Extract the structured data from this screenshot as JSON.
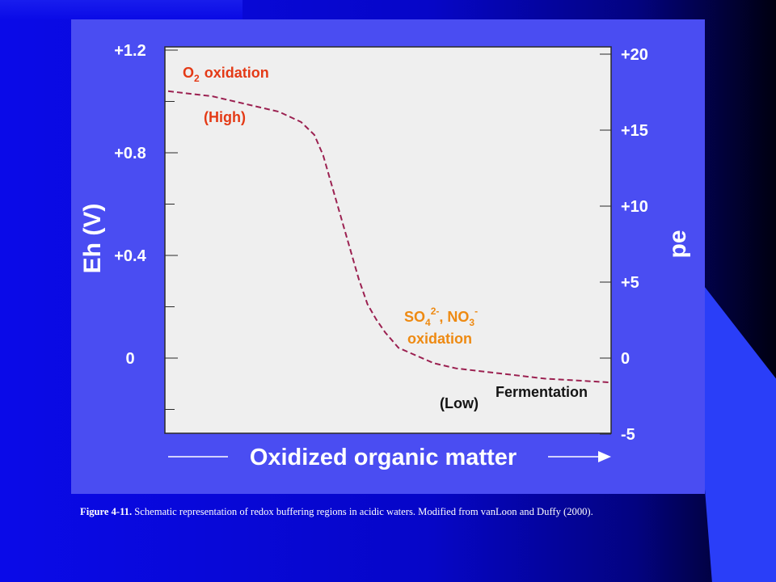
{
  "colors": {
    "background": "#0a0ae8",
    "panel": "#4a4df2",
    "plot_area": "#efefef",
    "curve": "#9b2050",
    "label_red": "#e43a16",
    "label_orange": "#ee8a12",
    "text_white": "#ffffff"
  },
  "chart_data": {
    "type": "line",
    "title": "",
    "xlabel": "Oxidized organic matter",
    "ylabel": "Eh (V)",
    "y2label": "pe",
    "ylim": [
      -0.3,
      1.3
    ],
    "y_ticks": [
      "+1.2",
      "+0.8",
      "+0.4",
      "0"
    ],
    "y2_ticks": [
      "+20",
      "+15",
      "+10",
      "+5",
      "0",
      "-5"
    ],
    "y2_tick_values": [
      20,
      15,
      10,
      5,
      0,
      -5
    ],
    "xlim": [
      0,
      100
    ],
    "series": [
      {
        "x": [
          0,
          5,
          10,
          15,
          20,
          25,
          30,
          33,
          35,
          37,
          39,
          41,
          43,
          45,
          47,
          49,
          52,
          56,
          60,
          65,
          70,
          75,
          80,
          85,
          90,
          95,
          100
        ],
        "y": [
          1.04,
          1.03,
          1.02,
          1.0,
          0.98,
          0.96,
          0.92,
          0.87,
          0.79,
          0.67,
          0.55,
          0.43,
          0.31,
          0.21,
          0.15,
          0.1,
          0.04,
          0.01,
          -0.02,
          -0.04,
          -0.05,
          -0.06,
          -0.07,
          -0.08,
          -0.085,
          -0.09,
          -0.095
        ]
      }
    ],
    "legend": "none",
    "grid": false
  },
  "annotations": {
    "o2_oxidation": {
      "main": "O",
      "sub": "2",
      "rest": "oxidation"
    },
    "high": "(High)",
    "so4_no3": {
      "so": "SO",
      "sub4": "4",
      "sup2": "2-",
      "comma_no": ", NO",
      "sub3": "3",
      "sup_minus": "-"
    },
    "oxidation2": "oxidation",
    "low": "(Low)",
    "fermentation": "Fermentation"
  },
  "caption": {
    "label": "Figure 4-11.",
    "text": " Schematic representation of redox buffering regions in acidic waters. Modified from vanLoon and Duffy (2000)."
  }
}
